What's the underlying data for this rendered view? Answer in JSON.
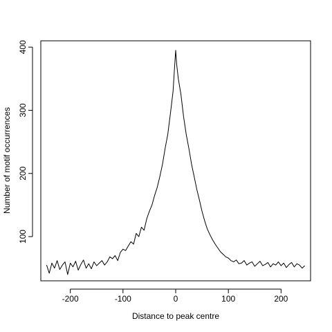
{
  "chart_data": {
    "type": "line",
    "title": "",
    "xlabel": "Distance to peak centre",
    "ylabel": "Number of motif occurrences",
    "xlim": [
      -256,
      256
    ],
    "ylim": [
      30,
      410
    ],
    "x_ticks": [
      -200,
      -100,
      0,
      100,
      200
    ],
    "y_ticks": [
      100,
      200,
      300,
      400
    ],
    "grid": false,
    "legend": "none",
    "line_color": "#000000",
    "series": [
      {
        "x": [
          -245,
          -240,
          -235,
          -230,
          -225,
          -220,
          -215,
          -210,
          -205,
          -200,
          -195,
          -190,
          -185,
          -180,
          -175,
          -170,
          -165,
          -160,
          -155,
          -150,
          -145,
          -140,
          -135,
          -130,
          -125,
          -120,
          -115,
          -110,
          -105,
          -100,
          -95,
          -90,
          -85,
          -80,
          -75,
          -70,
          -65,
          -60,
          -55,
          -50,
          -45,
          -40,
          -35,
          -30,
          -25,
          -20,
          -15,
          -10,
          -5,
          -2,
          0,
          2,
          5,
          10,
          15,
          20,
          25,
          30,
          35,
          40,
          45,
          50,
          55,
          60,
          65,
          70,
          75,
          80,
          85,
          90,
          95,
          100,
          105,
          110,
          115,
          120,
          125,
          130,
          135,
          140,
          145,
          150,
          155,
          160,
          165,
          170,
          175,
          180,
          185,
          190,
          195,
          200,
          205,
          210,
          215,
          220,
          225,
          230,
          235,
          240,
          245
        ],
        "y": [
          55,
          42,
          58,
          50,
          62,
          48,
          55,
          60,
          40,
          58,
          52,
          61,
          47,
          56,
          63,
          50,
          57,
          49,
          60,
          54,
          58,
          62,
          55,
          60,
          68,
          65,
          70,
          62,
          75,
          80,
          78,
          85,
          92,
          88,
          105,
          100,
          115,
          110,
          128,
          140,
          150,
          165,
          178,
          195,
          215,
          240,
          262,
          295,
          330,
          370,
          395,
          372,
          350,
          325,
          290,
          262,
          240,
          215,
          195,
          175,
          158,
          140,
          125,
          112,
          103,
          95,
          88,
          82,
          76,
          72,
          68,
          66,
          62,
          60,
          63,
          57,
          58,
          62,
          55,
          58,
          60,
          53,
          57,
          61,
          54,
          56,
          59,
          52,
          57,
          55,
          60,
          54,
          58,
          51,
          56,
          59,
          52,
          57,
          55,
          50,
          54
        ]
      }
    ]
  }
}
